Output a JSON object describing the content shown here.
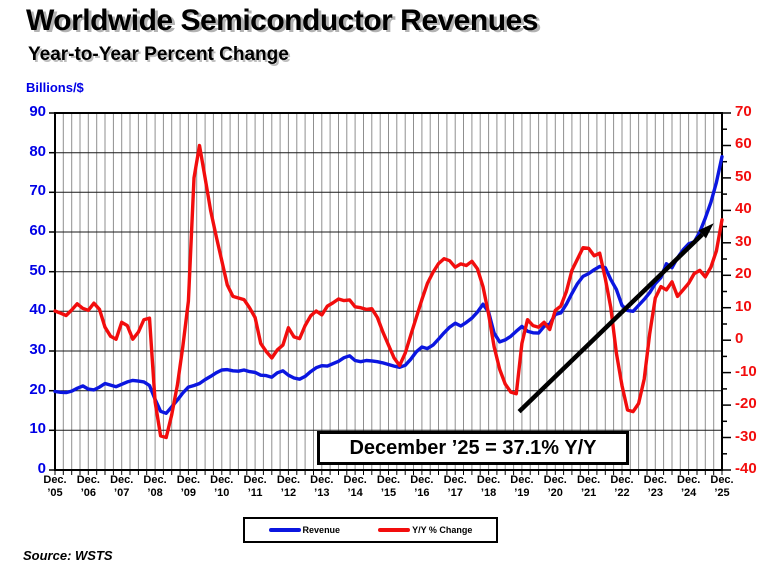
{
  "header": {
    "title": "Worldwide Semiconductor Revenues",
    "subtitle": "Year-to-Year Percent Change"
  },
  "annotation": {
    "text": "December ’25 = 37.1% Y/Y"
  },
  "source": "Source: WSTS",
  "legend": {
    "items": [
      {
        "label": "Revenue"
      },
      {
        "label": "Y/Y % Change"
      }
    ]
  },
  "chart_data": {
    "type": "line",
    "title": "Worldwide Semiconductor Revenues",
    "subtitle": "Year-to-Year Percent Change",
    "grid": true,
    "legend_position": "bottom-center",
    "x_start": "Dec 2005",
    "x_end": "Dec 2025",
    "x_step_months": 2,
    "x_axis": {
      "tick_prefix": "Dec.",
      "tick_years": [
        "’05",
        "’06",
        "’07",
        "’08",
        "’09",
        "’10",
        "’11",
        "’12",
        "’13",
        "’14",
        "’15",
        "’16",
        "’17",
        "’18",
        "’19",
        "’20",
        "’21",
        "’22",
        "’23",
        "’24",
        "’25"
      ],
      "months_total": 240,
      "gridline_every_months": 3
    },
    "left_axis": {
      "label": "Billions/$",
      "min": 0,
      "max": 90,
      "step": 10,
      "color": "#0000e6"
    },
    "right_axis": {
      "label": "Y/Y % Change",
      "min": -40,
      "max": 70,
      "step": 10,
      "minor_step": 5,
      "color": "#f20d0d"
    },
    "series": [
      {
        "name": "Revenue",
        "axis": "left",
        "units": "billions USD (monthly, 3-mo avg)",
        "color": "#0b16e0",
        "values": [
          19.8,
          19.6,
          19.5,
          19.9,
          20.6,
          21.2,
          20.4,
          20.2,
          20.9,
          21.8,
          21.4,
          21.0,
          21.6,
          22.2,
          22.6,
          22.4,
          22.2,
          21.3,
          17.8,
          14.8,
          14.3,
          15.9,
          17.6,
          19.4,
          20.9,
          21.3,
          21.8,
          22.8,
          23.6,
          24.5,
          25.2,
          25.3,
          25.0,
          24.9,
          25.2,
          24.8,
          24.6,
          23.9,
          23.8,
          23.4,
          24.5,
          25.0,
          23.9,
          23.2,
          22.9,
          23.6,
          24.8,
          25.8,
          26.3,
          26.2,
          26.8,
          27.4,
          28.3,
          28.8,
          27.6,
          27.3,
          27.6,
          27.5,
          27.3,
          27.0,
          26.6,
          26.2,
          25.9,
          26.4,
          27.9,
          29.8,
          31.0,
          30.6,
          31.5,
          33.0,
          34.6,
          36.0,
          37.0,
          36.3,
          37.2,
          38.3,
          39.8,
          41.8,
          39.8,
          34.5,
          32.3,
          32.8,
          33.7,
          35.0,
          36.2,
          35.0,
          34.6,
          34.5,
          36.2,
          36.8,
          39.2,
          39.6,
          41.8,
          44.5,
          47.0,
          48.8,
          49.5,
          50.5,
          51.3,
          51.0,
          48.0,
          45.5,
          41.5,
          40.2,
          40.0,
          41.5,
          43.0,
          44.7,
          47.0,
          48.5,
          52.0,
          51.0,
          53.5,
          55.5,
          57.0,
          57.5,
          60.0,
          63.5,
          67.5,
          72.5,
          79.0
        ]
      },
      {
        "name": "Y/Y % Change",
        "axis": "right",
        "units": "percent",
        "color": "#f20d0d",
        "values": [
          9.0,
          8.3,
          7.6,
          9.3,
          11.2,
          9.8,
          9.2,
          11.4,
          9.5,
          4.0,
          1.2,
          0.3,
          5.5,
          4.5,
          0.3,
          2.5,
          6.3,
          6.8,
          -19.0,
          -29.5,
          -30.0,
          -23.0,
          -14.0,
          -2.0,
          12.0,
          50.0,
          60.0,
          50.0,
          40.0,
          32.0,
          24.5,
          17.0,
          13.5,
          13.0,
          12.5,
          10.0,
          7.0,
          -1.0,
          -3.5,
          -5.5,
          -3.0,
          -1.5,
          3.8,
          1.0,
          0.5,
          4.5,
          7.5,
          9.0,
          7.8,
          10.5,
          11.5,
          12.7,
          12.2,
          12.4,
          10.3,
          10.0,
          9.5,
          9.7,
          7.0,
          2.5,
          -1.5,
          -5.5,
          -7.8,
          -4.0,
          1.5,
          7.0,
          12.5,
          17.5,
          20.9,
          23.6,
          25.1,
          24.5,
          22.5,
          23.5,
          23.0,
          24.3,
          22.0,
          16.5,
          8.0,
          -2.0,
          -9.0,
          -13.5,
          -16.0,
          -16.5,
          -1.0,
          6.3,
          4.5,
          4.0,
          5.5,
          3.3,
          9.2,
          10.5,
          15.0,
          21.5,
          25.0,
          28.5,
          28.3,
          26.0,
          26.8,
          19.0,
          10.0,
          -4.0,
          -14.0,
          -21.5,
          -22.0,
          -19.5,
          -12.0,
          2.0,
          13.0,
          16.5,
          15.5,
          18.0,
          13.5,
          15.5,
          17.5,
          20.5,
          21.5,
          19.5,
          22.5,
          27.5,
          37.1
        ]
      }
    ],
    "annotations": [
      {
        "text": "December ’25 = 37.1% Y/Y"
      }
    ],
    "trend_arrow": {
      "from": {
        "month_index": 167,
        "yoy": -22.0
      },
      "to": {
        "month_index": 237,
        "yoy": 36.0
      }
    },
    "last_point": {
      "label": "Dec ’25",
      "revenue_billions": 79.0,
      "yoy_percent": 37.1
    }
  }
}
